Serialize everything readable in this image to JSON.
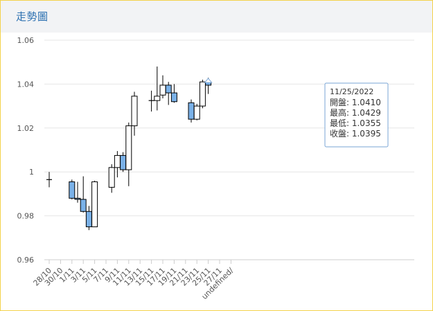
{
  "header": {
    "title": "走勢圖"
  },
  "colors": {
    "up": "#ffffff",
    "down": "#7ab1e8",
    "stroke": "#000000",
    "accent": "#2a6fb0"
  },
  "chart_data": {
    "type": "candlestick",
    "title": "",
    "xlabel": "",
    "ylabel": "",
    "ylim": [
      0.96,
      1.06
    ],
    "yticks": [
      "0.96",
      "0.98",
      "1",
      "1.02",
      "1.04",
      "1.06"
    ],
    "categories": [
      "28/10",
      "30/10",
      "1/11",
      "3/11",
      "5/11",
      "7/11",
      "9/11",
      "11/11",
      "13/11",
      "15/11",
      "17/11",
      "19/11",
      "21/11",
      "23/11",
      "25/11",
      "27/11",
      "undefined/"
    ],
    "grid": true,
    "legend": "none",
    "candles": [
      {
        "day": 0,
        "open": 0.9965,
        "high": 1.0,
        "low": 0.993,
        "close": 0.9965
      },
      {
        "day": 4,
        "open": 0.9955,
        "high": 0.9965,
        "low": 0.9875,
        "close": 0.988
      },
      {
        "day": 5,
        "open": 0.988,
        "high": 0.9955,
        "low": 0.986,
        "close": 0.9875
      },
      {
        "day": 6,
        "open": 0.9875,
        "high": 0.998,
        "low": 0.9815,
        "close": 0.982
      },
      {
        "day": 7,
        "open": 0.982,
        "high": 0.9845,
        "low": 0.9735,
        "close": 0.975
      },
      {
        "day": 8,
        "open": 0.975,
        "high": 0.996,
        "low": 0.975,
        "close": 0.9955
      },
      {
        "day": 11,
        "open": 0.993,
        "high": 1.0035,
        "low": 0.9905,
        "close": 1.002
      },
      {
        "day": 12,
        "open": 1.002,
        "high": 1.0095,
        "low": 0.9975,
        "close": 1.0075
      },
      {
        "day": 13,
        "open": 1.0075,
        "high": 1.009,
        "low": 1.0,
        "close": 1.001
      },
      {
        "day": 14,
        "open": 1.001,
        "high": 1.0225,
        "low": 0.9935,
        "close": 1.021
      },
      {
        "day": 15,
        "open": 1.021,
        "high": 1.0365,
        "low": 1.0165,
        "close": 1.0345
      },
      {
        "day": 18,
        "open": 1.0325,
        "high": 1.037,
        "low": 1.0275,
        "close": 1.0325
      },
      {
        "day": 19,
        "open": 1.0325,
        "high": 1.048,
        "low": 1.028,
        "close": 1.0345
      },
      {
        "day": 20,
        "open": 1.035,
        "high": 1.044,
        "low": 1.0335,
        "close": 1.0395
      },
      {
        "day": 21,
        "open": 1.0395,
        "high": 1.041,
        "low": 1.0305,
        "close": 1.036
      },
      {
        "day": 22,
        "open": 1.036,
        "high": 1.04,
        "low": 1.0315,
        "close": 1.032
      },
      {
        "day": 25,
        "open": 1.0315,
        "high": 1.033,
        "low": 1.0225,
        "close": 1.024
      },
      {
        "day": 26,
        "open": 1.024,
        "high": 1.031,
        "low": 1.0235,
        "close": 1.03
      },
      {
        "day": 27,
        "open": 1.03,
        "high": 1.042,
        "low": 1.029,
        "close": 1.041
      },
      {
        "day": 28,
        "open": 1.041,
        "high": 1.0429,
        "low": 1.0355,
        "close": 1.0395
      }
    ],
    "tooltip": {
      "date": "11/25/2022",
      "lines": [
        "開盤: 1.0410",
        "最高: 1.0429",
        "最低: 1.0355",
        "收盤: 1.0395"
      ]
    }
  }
}
